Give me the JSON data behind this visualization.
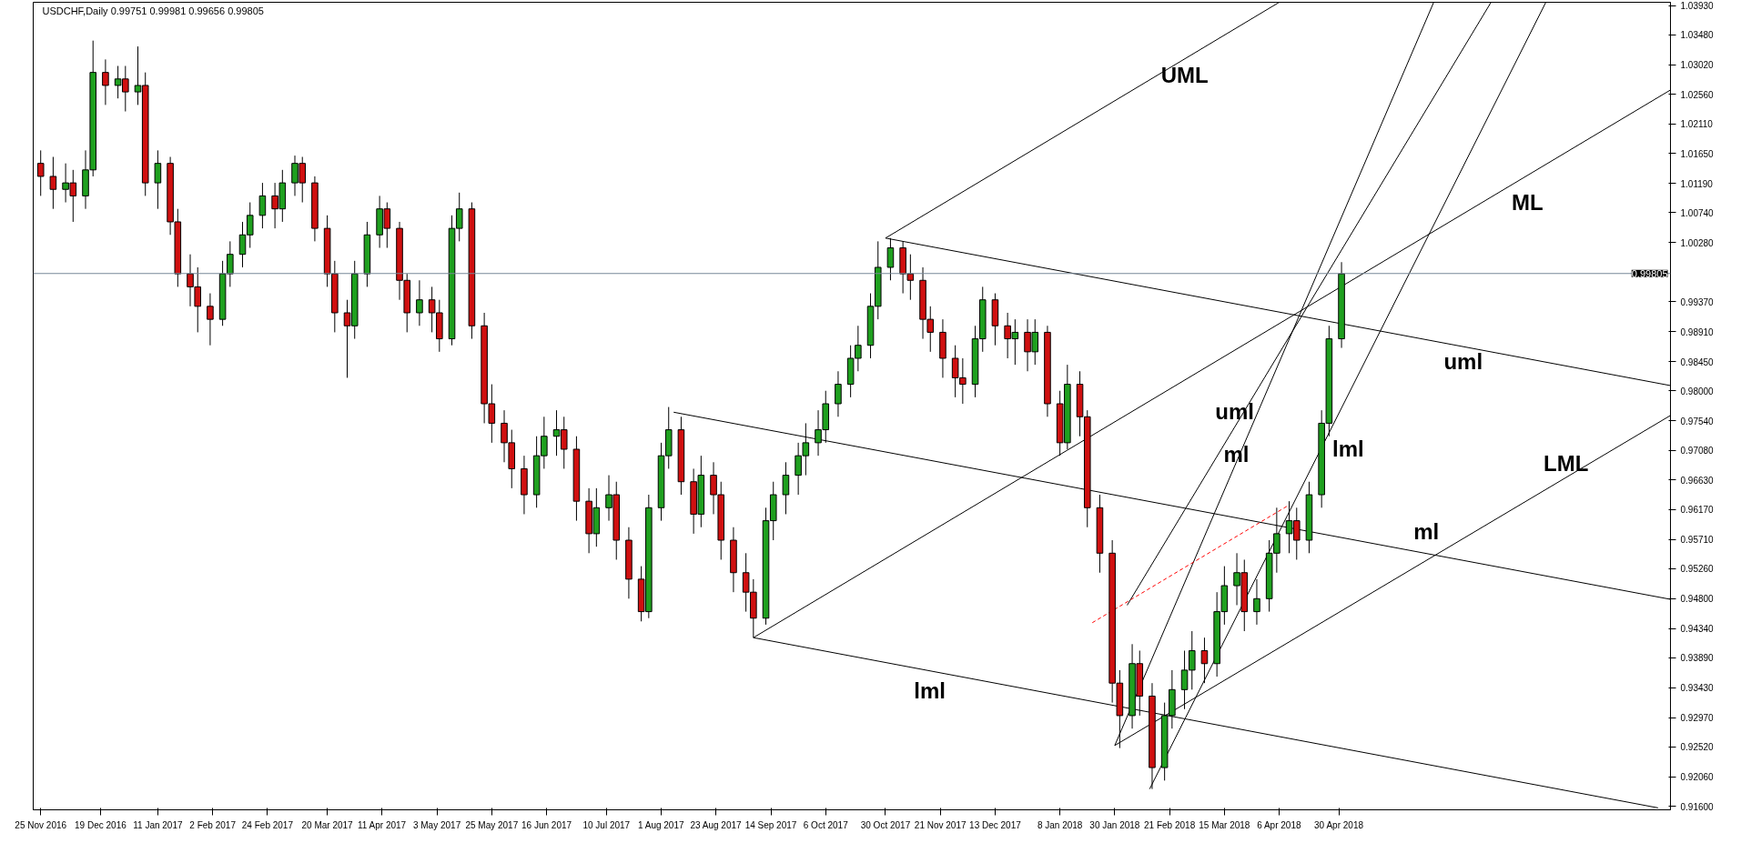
{
  "chart_data": {
    "type": "candlestick",
    "title": "USDCHF,Daily  0.99751 0.99981 0.99656 0.99805",
    "x": [
      "2016-11-25",
      "2016-11-30",
      "2016-12-05",
      "2016-12-08",
      "2016-12-13",
      "2016-12-16",
      "2016-12-21",
      "2016-12-26",
      "2016-12-29",
      "2017-01-03",
      "2017-01-06",
      "2017-01-11",
      "2017-01-16",
      "2017-01-19",
      "2017-01-24",
      "2017-01-27",
      "2017-02-01",
      "2017-02-06",
      "2017-02-09",
      "2017-02-14",
      "2017-02-17",
      "2017-02-22",
      "2017-02-27",
      "2017-03-02",
      "2017-03-07",
      "2017-03-10",
      "2017-03-15",
      "2017-03-20",
      "2017-03-23",
      "2017-03-28",
      "2017-03-31",
      "2017-04-05",
      "2017-04-10",
      "2017-04-13",
      "2017-04-18",
      "2017-04-21",
      "2017-04-26",
      "2017-05-01",
      "2017-05-04",
      "2017-05-09",
      "2017-05-12",
      "2017-05-17",
      "2017-05-22",
      "2017-05-25",
      "2017-05-30",
      "2017-06-02",
      "2017-06-07",
      "2017-06-12",
      "2017-06-15",
      "2017-06-20",
      "2017-06-23",
      "2017-06-28",
      "2017-07-03",
      "2017-07-06",
      "2017-07-11",
      "2017-07-14",
      "2017-07-19",
      "2017-07-24",
      "2017-07-27",
      "2017-08-01",
      "2017-08-04",
      "2017-08-09",
      "2017-08-14",
      "2017-08-17",
      "2017-08-22",
      "2017-08-25",
      "2017-08-30",
      "2017-09-04",
      "2017-09-07",
      "2017-09-12",
      "2017-09-15",
      "2017-09-20",
      "2017-09-25",
      "2017-09-28",
      "2017-10-03",
      "2017-10-06",
      "2017-10-11",
      "2017-10-16",
      "2017-10-19",
      "2017-10-24",
      "2017-10-27",
      "2017-11-01",
      "2017-11-06",
      "2017-11-09",
      "2017-11-14",
      "2017-11-17",
      "2017-11-22",
      "2017-11-27",
      "2017-11-30",
      "2017-12-05",
      "2017-12-08",
      "2017-12-13",
      "2017-12-18",
      "2017-12-21",
      "2017-12-26",
      "2017-12-29",
      "2018-01-03",
      "2018-01-08",
      "2018-01-11",
      "2018-01-16",
      "2018-01-19",
      "2018-01-24",
      "2018-01-29",
      "2018-02-01",
      "2018-02-06",
      "2018-02-09",
      "2018-02-14",
      "2018-02-19",
      "2018-02-22",
      "2018-02-27",
      "2018-03-02",
      "2018-03-07",
      "2018-03-12",
      "2018-03-15",
      "2018-03-20",
      "2018-03-23",
      "2018-03-28",
      "2018-04-02",
      "2018-04-05",
      "2018-04-10",
      "2018-04-13",
      "2018-04-18",
      "2018-04-23",
      "2018-04-26",
      "2018-05-01"
    ],
    "ohlc": [
      [
        1.015,
        1.017,
        1.01,
        1.013
      ],
      [
        1.013,
        1.016,
        1.008,
        1.011
      ],
      [
        1.011,
        1.015,
        1.009,
        1.012
      ],
      [
        1.012,
        1.014,
        1.006,
        1.01
      ],
      [
        1.01,
        1.017,
        1.008,
        1.014
      ],
      [
        1.014,
        1.0339,
        1.013,
        1.029
      ],
      [
        1.029,
        1.031,
        1.024,
        1.027
      ],
      [
        1.027,
        1.03,
        1.025,
        1.028
      ],
      [
        1.028,
        1.03,
        1.023,
        1.026
      ],
      [
        1.026,
        1.033,
        1.024,
        1.027
      ],
      [
        1.027,
        1.029,
        1.01,
        1.012
      ],
      [
        1.012,
        1.017,
        1.008,
        1.015
      ],
      [
        1.015,
        1.016,
        1.004,
        1.006
      ],
      [
        1.006,
        1.008,
        0.996,
        0.998
      ],
      [
        0.998,
        1.001,
        0.993,
        0.996
      ],
      [
        0.996,
        0.999,
        0.989,
        0.993
      ],
      [
        0.993,
        0.995,
        0.987,
        0.991
      ],
      [
        0.991,
        1.0,
        0.99,
        0.998
      ],
      [
        0.998,
        1.003,
        0.996,
        1.001
      ],
      [
        1.001,
        1.006,
        0.999,
        1.004
      ],
      [
        1.004,
        1.009,
        1.002,
        1.007
      ],
      [
        1.007,
        1.012,
        1.005,
        1.01
      ],
      [
        1.01,
        1.012,
        1.005,
        1.008
      ],
      [
        1.008,
        1.014,
        1.006,
        1.012
      ],
      [
        1.012,
        1.0162,
        1.01,
        1.015
      ],
      [
        1.015,
        1.016,
        1.009,
        1.012
      ],
      [
        1.012,
        1.013,
        1.003,
        1.005
      ],
      [
        1.005,
        1.007,
        0.996,
        0.998
      ],
      [
        0.998,
        1.0,
        0.989,
        0.992
      ],
      [
        0.992,
        0.994,
        0.982,
        0.99
      ],
      [
        0.99,
        1.0,
        0.988,
        0.998
      ],
      [
        0.998,
        1.006,
        0.996,
        1.004
      ],
      [
        1.004,
        1.01,
        1.002,
        1.008
      ],
      [
        1.008,
        1.009,
        1.002,
        1.005
      ],
      [
        1.005,
        1.006,
        0.994,
        0.997
      ],
      [
        0.997,
        0.998,
        0.989,
        0.992
      ],
      [
        0.992,
        0.997,
        0.99,
        0.994
      ],
      [
        0.994,
        0.996,
        0.989,
        0.992
      ],
      [
        0.992,
        0.994,
        0.986,
        0.988
      ],
      [
        0.988,
        1.007,
        0.987,
        1.005
      ],
      [
        1.005,
        1.0105,
        1.003,
        1.008
      ],
      [
        1.008,
        1.009,
        0.988,
        0.99
      ],
      [
        0.99,
        0.992,
        0.975,
        0.978
      ],
      [
        0.978,
        0.981,
        0.972,
        0.975
      ],
      [
        0.975,
        0.977,
        0.969,
        0.972
      ],
      [
        0.972,
        0.974,
        0.965,
        0.968
      ],
      [
        0.968,
        0.97,
        0.961,
        0.964
      ],
      [
        0.964,
        0.973,
        0.962,
        0.97
      ],
      [
        0.97,
        0.976,
        0.968,
        0.973
      ],
      [
        0.973,
        0.977,
        0.97,
        0.974
      ],
      [
        0.974,
        0.976,
        0.968,
        0.971
      ],
      [
        0.971,
        0.973,
        0.96,
        0.963
      ],
      [
        0.963,
        0.965,
        0.955,
        0.958
      ],
      [
        0.958,
        0.965,
        0.956,
        0.962
      ],
      [
        0.962,
        0.967,
        0.96,
        0.964
      ],
      [
        0.964,
        0.966,
        0.954,
        0.957
      ],
      [
        0.957,
        0.959,
        0.948,
        0.951
      ],
      [
        0.951,
        0.953,
        0.9445,
        0.946
      ],
      [
        0.946,
        0.964,
        0.945,
        0.962
      ],
      [
        0.962,
        0.972,
        0.96,
        0.97
      ],
      [
        0.97,
        0.9775,
        0.968,
        0.974
      ],
      [
        0.974,
        0.976,
        0.964,
        0.966
      ],
      [
        0.966,
        0.968,
        0.958,
        0.961
      ],
      [
        0.961,
        0.97,
        0.959,
        0.967
      ],
      [
        0.967,
        0.969,
        0.961,
        0.964
      ],
      [
        0.964,
        0.966,
        0.954,
        0.957
      ],
      [
        0.957,
        0.959,
        0.949,
        0.952
      ],
      [
        0.952,
        0.955,
        0.946,
        0.949
      ],
      [
        0.949,
        0.951,
        0.942,
        0.945
      ],
      [
        0.945,
        0.962,
        0.944,
        0.96
      ],
      [
        0.96,
        0.966,
        0.957,
        0.964
      ],
      [
        0.964,
        0.969,
        0.961,
        0.967
      ],
      [
        0.967,
        0.972,
        0.964,
        0.97
      ],
      [
        0.97,
        0.975,
        0.967,
        0.972
      ],
      [
        0.972,
        0.977,
        0.97,
        0.974
      ],
      [
        0.974,
        0.98,
        0.972,
        0.978
      ],
      [
        0.978,
        0.983,
        0.976,
        0.981
      ],
      [
        0.981,
        0.987,
        0.979,
        0.985
      ],
      [
        0.985,
        0.99,
        0.983,
        0.987
      ],
      [
        0.987,
        0.995,
        0.985,
        0.993
      ],
      [
        0.993,
        1.003,
        0.991,
        0.999
      ],
      [
        0.999,
        1.0035,
        0.997,
        1.002
      ],
      [
        1.002,
        1.003,
        0.995,
        0.998
      ],
      [
        0.998,
        1.001,
        0.994,
        0.997
      ],
      [
        0.997,
        0.999,
        0.988,
        0.991
      ],
      [
        0.991,
        0.993,
        0.986,
        0.989
      ],
      [
        0.989,
        0.991,
        0.982,
        0.985
      ],
      [
        0.985,
        0.987,
        0.979,
        0.982
      ],
      [
        0.982,
        0.985,
        0.978,
        0.981
      ],
      [
        0.981,
        0.99,
        0.979,
        0.988
      ],
      [
        0.988,
        0.996,
        0.986,
        0.994
      ],
      [
        0.994,
        0.995,
        0.987,
        0.99
      ],
      [
        0.99,
        0.992,
        0.985,
        0.988
      ],
      [
        0.988,
        0.991,
        0.984,
        0.989
      ],
      [
        0.989,
        0.991,
        0.983,
        0.986
      ],
      [
        0.986,
        0.991,
        0.984,
        0.989
      ],
      [
        0.989,
        0.99,
        0.976,
        0.978
      ],
      [
        0.978,
        0.98,
        0.97,
        0.972
      ],
      [
        0.972,
        0.984,
        0.971,
        0.981
      ],
      [
        0.981,
        0.983,
        0.973,
        0.976
      ],
      [
        0.976,
        0.977,
        0.959,
        0.962
      ],
      [
        0.962,
        0.964,
        0.952,
        0.955
      ],
      [
        0.955,
        0.957,
        0.932,
        0.935
      ],
      [
        0.935,
        0.937,
        0.925,
        0.93
      ],
      [
        0.93,
        0.941,
        0.928,
        0.938
      ],
      [
        0.938,
        0.94,
        0.93,
        0.933
      ],
      [
        0.933,
        0.935,
        0.9187,
        0.922
      ],
      [
        0.922,
        0.932,
        0.92,
        0.93
      ],
      [
        0.93,
        0.937,
        0.928,
        0.934
      ],
      [
        0.934,
        0.94,
        0.931,
        0.937
      ],
      [
        0.937,
        0.943,
        0.934,
        0.94
      ],
      [
        0.94,
        0.942,
        0.935,
        0.938
      ],
      [
        0.938,
        0.949,
        0.936,
        0.946
      ],
      [
        0.946,
        0.953,
        0.944,
        0.95
      ],
      [
        0.95,
        0.955,
        0.947,
        0.952
      ],
      [
        0.952,
        0.954,
        0.943,
        0.946
      ],
      [
        0.946,
        0.951,
        0.944,
        0.948
      ],
      [
        0.948,
        0.957,
        0.946,
        0.955
      ],
      [
        0.955,
        0.962,
        0.952,
        0.958
      ],
      [
        0.958,
        0.963,
        0.955,
        0.96
      ],
      [
        0.96,
        0.962,
        0.954,
        0.957
      ],
      [
        0.957,
        0.966,
        0.955,
        0.964
      ],
      [
        0.964,
        0.977,
        0.962,
        0.975
      ],
      [
        0.975,
        0.99,
        0.973,
        0.988
      ],
      [
        0.988,
        0.9998,
        0.9866,
        0.998
      ]
    ],
    "xlim": [
      "2016-11-22",
      "2018-09-10"
    ],
    "ylim": [
      0.9155,
      1.0398
    ],
    "xticks": [
      {
        "value": "2016-11-25",
        "label": "25 Nov 2016"
      },
      {
        "value": "2016-12-19",
        "label": "19 Dec 2016"
      },
      {
        "value": "2017-01-11",
        "label": "11 Jan 2017"
      },
      {
        "value": "2017-02-02",
        "label": "2 Feb 2017"
      },
      {
        "value": "2017-02-24",
        "label": "24 Feb 2017"
      },
      {
        "value": "2017-03-20",
        "label": "20 Mar 2017"
      },
      {
        "value": "2017-04-11",
        "label": "11 Apr 2017"
      },
      {
        "value": "2017-05-03",
        "label": "3 May 2017"
      },
      {
        "value": "2017-05-25",
        "label": "25 May 2017"
      },
      {
        "value": "2017-06-16",
        "label": "16 Jun 2017"
      },
      {
        "value": "2017-07-10",
        "label": "10 Jul 2017"
      },
      {
        "value": "2017-08-01",
        "label": "1 Aug 2017"
      },
      {
        "value": "2017-08-23",
        "label": "23 Aug 2017"
      },
      {
        "value": "2017-09-14",
        "label": "14 Sep 2017"
      },
      {
        "value": "2017-10-06",
        "label": "6 Oct 2017"
      },
      {
        "value": "2017-10-30",
        "label": "30 Oct 2017"
      },
      {
        "value": "2017-11-21",
        "label": "21 Nov 2017"
      },
      {
        "value": "2017-12-13",
        "label": "13 Dec 2017"
      },
      {
        "value": "2018-01-08",
        "label": "8 Jan 2018"
      },
      {
        "value": "2018-01-30",
        "label": "30 Jan 2018"
      },
      {
        "value": "2018-02-21",
        "label": "21 Feb 2018"
      },
      {
        "value": "2018-03-15",
        "label": "15 Mar 2018"
      },
      {
        "value": "2018-04-06",
        "label": "6 Apr 2018"
      },
      {
        "value": "2018-04-30",
        "label": "30 Apr 2018"
      }
    ],
    "yticks": [
      {
        "value": 1.0393,
        "label": "1.03930"
      },
      {
        "value": 1.0348,
        "label": "1.03480"
      },
      {
        "value": 1.0302,
        "label": "1.03020"
      },
      {
        "value": 1.0256,
        "label": "1.02560"
      },
      {
        "value": 1.0211,
        "label": "1.02110"
      },
      {
        "value": 1.0165,
        "label": "1.01650"
      },
      {
        "value": 1.0119,
        "label": "1.01190"
      },
      {
        "value": 1.0074,
        "label": "1.00740"
      },
      {
        "value": 1.0028,
        "label": "1.00280"
      },
      {
        "value": 0.9937,
        "label": "0.99370"
      },
      {
        "value": 0.9891,
        "label": "0.98910"
      },
      {
        "value": 0.9845,
        "label": "0.98450"
      },
      {
        "value": 0.98,
        "label": "0.98000"
      },
      {
        "value": 0.9754,
        "label": "0.97540"
      },
      {
        "value": 0.9708,
        "label": "0.97080"
      },
      {
        "value": 0.9663,
        "label": "0.96630"
      },
      {
        "value": 0.9617,
        "label": "0.96170"
      },
      {
        "value": 0.9571,
        "label": "0.95710"
      },
      {
        "value": 0.9526,
        "label": "0.95260"
      },
      {
        "value": 0.948,
        "label": "0.94800"
      },
      {
        "value": 0.9434,
        "label": "0.94340"
      },
      {
        "value": 0.9389,
        "label": "0.93890"
      },
      {
        "value": 0.9343,
        "label": "0.93430"
      },
      {
        "value": 0.9297,
        "label": "0.92970"
      },
      {
        "value": 0.9252,
        "label": "0.92520"
      },
      {
        "value": 0.9206,
        "label": "0.92060"
      },
      {
        "value": 0.916,
        "label": "0.91600"
      }
    ],
    "ref_lines": [
      {
        "axis": "y",
        "value": 0.99805,
        "label": "0.99805",
        "color": "#778899"
      }
    ],
    "series": [
      {
        "type": "line",
        "name": "UML",
        "color": "#000000",
        "x": [
          "2017-10-30",
          "2018-04-06"
        ],
        "values": [
          1.0035,
          1.0398
        ]
      },
      {
        "type": "line",
        "name": "ML",
        "color": "#000000",
        "x": [
          "2017-09-07",
          "2018-09-10"
        ],
        "values": [
          0.942,
          1.0263
        ]
      },
      {
        "type": "line",
        "name": "LML",
        "color": "#000000",
        "x": [
          "2018-01-30",
          "2018-09-10"
        ],
        "values": [
          0.9254,
          0.9762
        ]
      },
      {
        "type": "line",
        "name": "uml",
        "color": "#000000",
        "x": [
          "2017-10-30",
          "2018-09-10"
        ],
        "values": [
          1.0035,
          0.9808
        ]
      },
      {
        "type": "line",
        "name": "ml",
        "color": "#000000",
        "x": [
          "2017-08-06",
          "2018-09-10"
        ],
        "values": [
          0.9767,
          0.9479
        ]
      },
      {
        "type": "line",
        "name": "lml",
        "color": "#000000",
        "x": [
          "2017-09-07",
          "2018-09-05"
        ],
        "values": [
          0.942,
          0.9158
        ]
      },
      {
        "type": "line",
        "name": "uml",
        "color": "#000000",
        "x": [
          "2018-01-30",
          "2018-06-07"
        ],
        "values": [
          0.9254,
          1.0398
        ]
      },
      {
        "type": "line",
        "name": "ml",
        "color": "#000000",
        "x": [
          "2018-02-04",
          "2018-06-30"
        ],
        "values": [
          0.947,
          1.0398
        ]
      },
      {
        "type": "line",
        "name": "lml",
        "color": "#000000",
        "x": [
          "2018-02-13",
          "2018-07-22"
        ],
        "values": [
          0.9187,
          1.0398
        ]
      },
      {
        "type": "line",
        "color": "#ff0000",
        "line_style": "dashed",
        "x": [
          "2018-01-21",
          "2018-04-09"
        ],
        "values": [
          0.9443,
          0.9622
        ]
      }
    ]
  }
}
